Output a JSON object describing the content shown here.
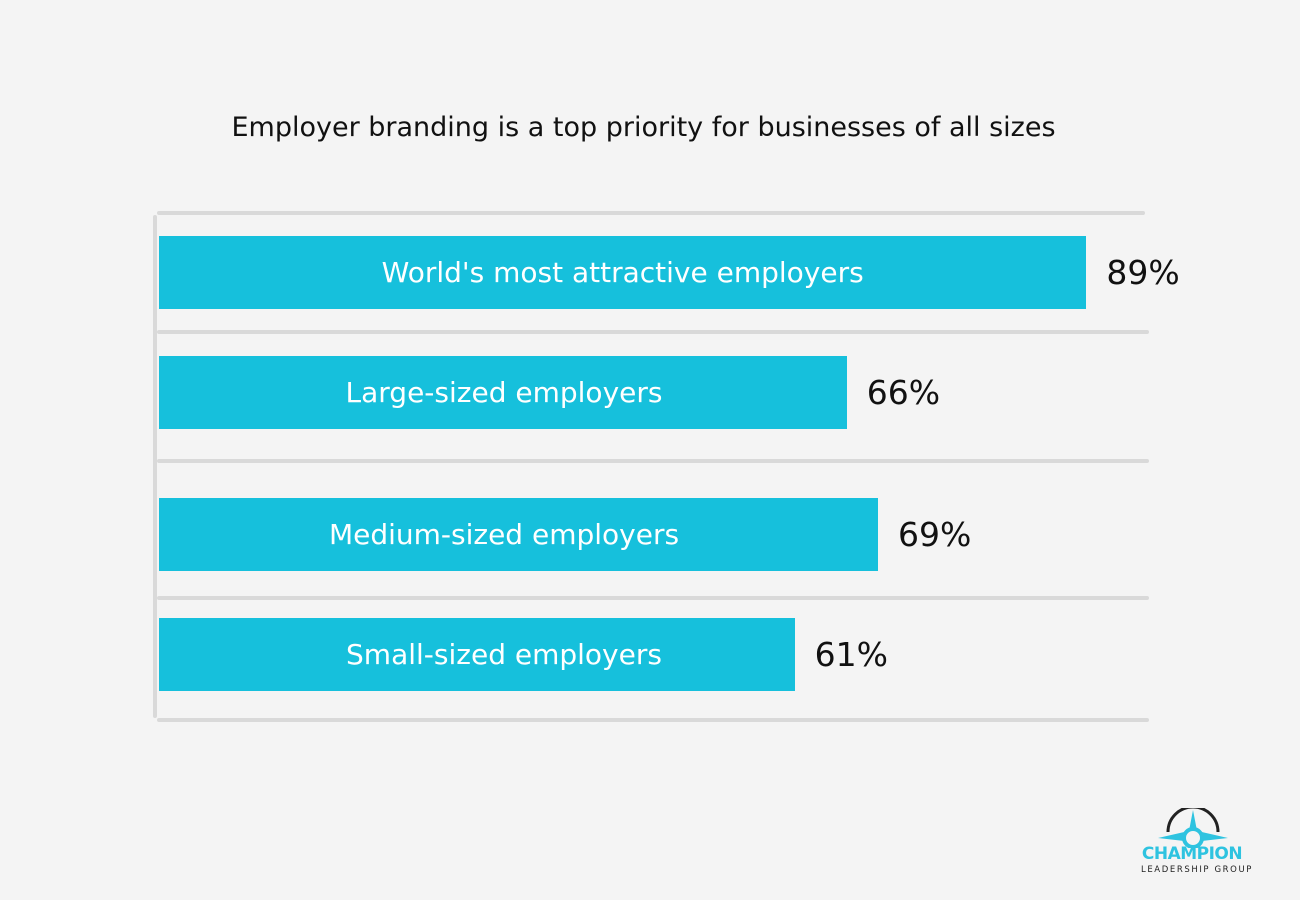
{
  "chart_data": {
    "type": "bar",
    "orientation": "horizontal",
    "title": "Employer branding is a top priority for businesses of all sizes",
    "categories": [
      "World's most attractive employers",
      "Large-sized employers",
      "Medium-sized employers",
      "Small-sized employers"
    ],
    "values": [
      89,
      66,
      69,
      61
    ],
    "value_labels": [
      "89%",
      "66%",
      "69%",
      "61%"
    ],
    "unit": "%",
    "xlim": [
      0,
      100
    ],
    "grid": true,
    "bar_color": "#16c0dc",
    "label_color": "#ffffff"
  },
  "logo": {
    "name": "CHAMPION",
    "subtitle": "LEADERSHIP GROUP",
    "color": "#2ec3e0"
  }
}
